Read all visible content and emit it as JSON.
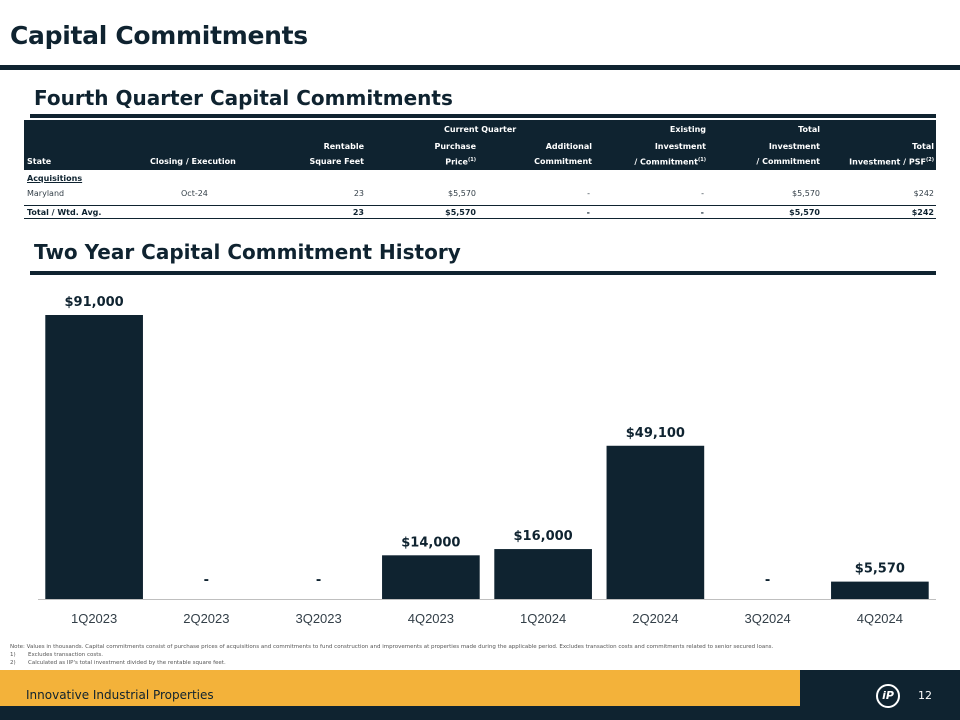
{
  "header": {
    "title": "Capital Commitments"
  },
  "table_section": {
    "title": "Fourth Quarter Capital Commitments",
    "group_header": {
      "current_quarter": "Current Quarter",
      "existing": "Existing",
      "total": "Total"
    },
    "columns": {
      "state": "State",
      "closing": "Closing / Execution",
      "rentable_1": "Rentable",
      "rentable_2": "Square Feet",
      "purchase_1": "Purchase",
      "purchase_2": "Price",
      "purchase_sup": "(1)",
      "additional_1": "Additional",
      "additional_2": "Commitment",
      "existing_1": "Investment",
      "existing_2": "/ Commitment",
      "existing_sup": "(1)",
      "total_1": "Investment",
      "total_2": "/ Commitment",
      "psf_1": "Total",
      "psf_2": "Investment / PSF",
      "psf_sup": "(2)"
    },
    "section_label": "Acquisitions",
    "rows": [
      {
        "state": "Maryland",
        "closing": "Oct-24",
        "sqft": "23",
        "price": "$5,570",
        "additional": "-",
        "existing": "-",
        "total": "$5,570",
        "psf": "$242"
      }
    ],
    "total_row": {
      "label": "Total / Wtd. Avg.",
      "sqft": "23",
      "price": "$5,570",
      "additional": "-",
      "existing": "-",
      "total": "$5,570",
      "psf": "$242"
    }
  },
  "chart_section": {
    "title": "Two Year Capital Commitment History"
  },
  "chart_data": {
    "type": "bar",
    "categories": [
      "1Q2023",
      "2Q2023",
      "3Q2023",
      "4Q2023",
      "1Q2024",
      "2Q2024",
      "3Q2024",
      "4Q2024"
    ],
    "values": [
      91000,
      0,
      0,
      14000,
      16000,
      49100,
      0,
      5570
    ],
    "data_labels": [
      "$91,000",
      "-",
      "-",
      "$14,000",
      "$16,000",
      "$49,100",
      "-",
      "$5,570"
    ],
    "title": "",
    "xlabel": "",
    "ylabel": "",
    "ylim": [
      0,
      91000
    ],
    "bar_color": "#0f2330",
    "grid": false
  },
  "footnotes": {
    "note": "Note: Values in thousands. Capital commitments consist of purchase prices of acquisitions and commitments to fund construction and improvements at properties made during the applicable period. Excludes transaction costs and commitments related to senior secured loans.",
    "items": [
      {
        "num": "1)",
        "text": "Excludes transaction costs."
      },
      {
        "num": "2)",
        "text": "Calculated as IIP's total investment divided by the rentable square feet."
      }
    ]
  },
  "footer": {
    "company": "Innovative Industrial Properties",
    "logo_text": "iP",
    "page": "12"
  },
  "colors": {
    "navy": "#0f2330",
    "gold": "#f3b23a"
  }
}
